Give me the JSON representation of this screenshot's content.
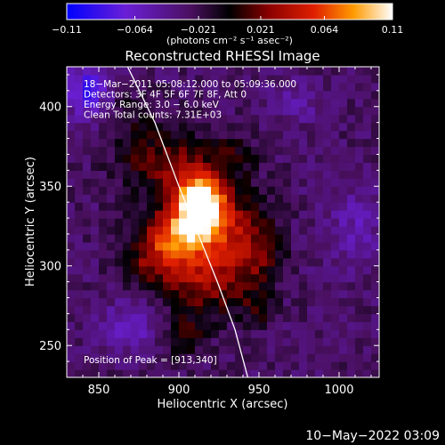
{
  "chart_data": {
    "type": "heatmap",
    "title": "Reconstructed RHESSI Image",
    "xlabel": "Heliocentric X (arcsec)",
    "ylabel": "Heliocentric Y (arcsec)",
    "xlim": [
      830,
      1025
    ],
    "ylim": [
      230,
      425
    ],
    "x_ticks": [
      850,
      900,
      950,
      1000
    ],
    "y_ticks": [
      250,
      300,
      350,
      400
    ],
    "colorbar": {
      "range": [
        -0.11,
        0.11
      ],
      "tick_values": [
        -0.11,
        -0.064,
        -0.021,
        0.021,
        0.064,
        0.11
      ],
      "tick_labels": [
        "−0.11",
        "−0.064",
        "−0.021",
        "0.021",
        "0.064",
        "0.11"
      ],
      "unit_label": "(photons cm⁻² s⁻¹ asec⁻²)"
    },
    "annotations": [
      "18−Mar−2011 05:08:12.000 to 05:09:36.000",
      "Detectors: 3F 4F 5F 6F 7F 8F, Att 0",
      "Energy Range: 3.0 − 6.0 keV",
      "Clean     Total counts: 7.31E+03"
    ],
    "peak_label": "Position of Peak = [913,340]",
    "peak": [
      913,
      340
    ],
    "limb_curve": [
      [
        868,
        425
      ],
      [
        885,
        390
      ],
      [
        900,
        350
      ],
      [
        912,
        320
      ],
      [
        924,
        290
      ],
      [
        935,
        260
      ],
      [
        943,
        230
      ]
    ],
    "sources": [
      {
        "x": 913,
        "y": 340,
        "sx": 10,
        "sy": 12,
        "amp": 0.14
      },
      {
        "x": 898,
        "y": 318,
        "sx": 16,
        "sy": 12,
        "amp": 0.09
      },
      {
        "x": 925,
        "y": 325,
        "sx": 18,
        "sy": 20,
        "amp": 0.055
      },
      {
        "x": 892,
        "y": 365,
        "sx": 20,
        "sy": 14,
        "amp": 0.05
      },
      {
        "x": 915,
        "y": 288,
        "sx": 20,
        "sy": 14,
        "amp": 0.05
      },
      {
        "x": 880,
        "y": 300,
        "sx": 12,
        "sy": 10,
        "amp": 0.03
      },
      {
        "x": 948,
        "y": 308,
        "sx": 12,
        "sy": 16,
        "amp": 0.035
      },
      {
        "x": 903,
        "y": 255,
        "sx": 10,
        "sy": 9,
        "amp": 0.035
      },
      {
        "x": 935,
        "y": 370,
        "sx": 10,
        "sy": 10,
        "amp": 0.025
      },
      {
        "x": 950,
        "y": 272,
        "sx": 7,
        "sy": 7,
        "amp": 0.03
      },
      {
        "x": 872,
        "y": 395,
        "sx": 12,
        "sy": 10,
        "amp": 0.02
      },
      {
        "x": 842,
        "y": 410,
        "sx": 10,
        "sy": 12,
        "amp": -0.055
      },
      {
        "x": 870,
        "y": 262,
        "sx": 14,
        "sy": 12,
        "amp": -0.03
      },
      {
        "x": 1010,
        "y": 325,
        "sx": 14,
        "sy": 18,
        "amp": -0.025
      },
      {
        "x": 975,
        "y": 405,
        "sx": 12,
        "sy": 10,
        "amp": -0.02
      }
    ],
    "background_level": -0.028
  },
  "footer": {
    "timestamp": "10−May−2022 03:09"
  }
}
